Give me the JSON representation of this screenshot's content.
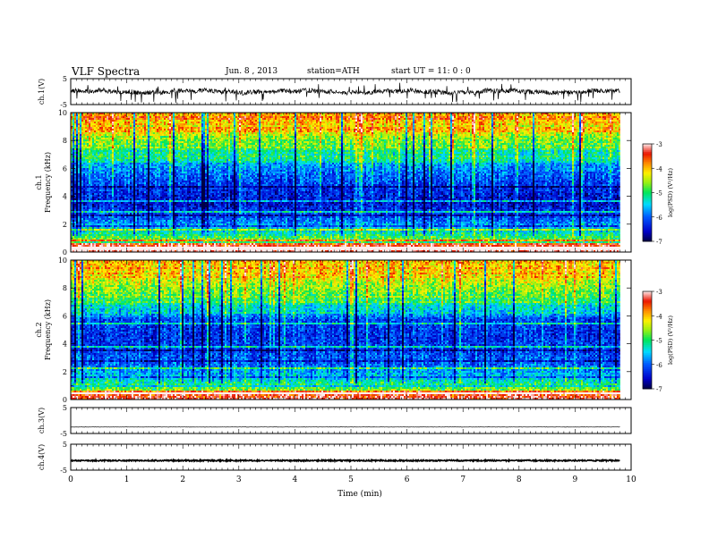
{
  "header": {
    "title": "VLF  Spectra",
    "date": "Jun. 8 , 2013",
    "station": "station=ATH",
    "start": "start  UT  =   11: 0  : 0"
  },
  "chart_data": {
    "type": "composite",
    "xlabel": "Time  (min)",
    "xlim": [
      0,
      10
    ],
    "xticks": [
      "0",
      "1",
      "2",
      "3",
      "4",
      "5",
      "6",
      "7",
      "8",
      "9",
      "10"
    ],
    "data_end_min": 9.8,
    "panels": [
      {
        "id": "ch1_wave",
        "type": "line",
        "ylabel": "ch.1(V)",
        "ylim": [
          -5,
          5
        ],
        "yticks": [
          "5",
          "-5"
        ],
        "baseline": 0,
        "noise_amplitude": 0.9,
        "line_color": "#000000"
      },
      {
        "id": "ch1_spectrogram",
        "type": "heatmap",
        "ylabel_channel": "ch.1",
        "ylabel": "Frequency  (kHz)",
        "ylim": [
          0,
          10
        ],
        "yticks": [
          "0",
          "2",
          "4",
          "6",
          "8",
          "10"
        ],
        "colorbar": {
          "label": "log(PSD) (V²/Hz)",
          "range": [
            -7,
            -3
          ],
          "ticks": [
            "-3",
            "-4",
            "-5",
            "-6",
            "-7"
          ]
        },
        "profile_kHz": [
          [
            0,
            -4.0
          ],
          [
            0.8,
            -4.6
          ],
          [
            1.5,
            -5.4
          ],
          [
            2.5,
            -6.1
          ],
          [
            3.5,
            -6.5
          ],
          [
            4.5,
            -6.3
          ],
          [
            5.5,
            -6.0
          ],
          [
            6.3,
            -5.7
          ],
          [
            7.0,
            -5.2
          ],
          [
            8.0,
            -4.6
          ],
          [
            9.0,
            -4.1
          ],
          [
            10,
            -3.9
          ]
        ]
      },
      {
        "id": "ch2_spectrogram",
        "type": "heatmap",
        "ylabel_channel": "ch.2",
        "ylabel": "Frequency  (kHz)",
        "ylim": [
          0,
          10
        ],
        "yticks": [
          "0",
          "2",
          "4",
          "6",
          "8",
          "10"
        ],
        "colorbar": {
          "label": "log(PSD) (V²/Hz)",
          "range": [
            -7,
            -3
          ],
          "ticks": [
            "-3",
            "-4",
            "-5",
            "-6",
            "-7"
          ]
        },
        "profile_kHz": [
          [
            0,
            -4.2
          ],
          [
            0.8,
            -4.8
          ],
          [
            1.5,
            -5.5
          ],
          [
            2.5,
            -6.0
          ],
          [
            3.5,
            -6.2
          ],
          [
            4.5,
            -6.3
          ],
          [
            5.5,
            -6.2
          ],
          [
            6.3,
            -5.6
          ],
          [
            7.0,
            -5.1
          ],
          [
            8.0,
            -4.6
          ],
          [
            9.0,
            -4.2
          ],
          [
            10,
            -4.0
          ]
        ]
      },
      {
        "id": "ch3_wave",
        "type": "line",
        "ylabel": "ch.3(V)",
        "ylim": [
          -5,
          5
        ],
        "yticks": [
          "5",
          "-5"
        ],
        "baseline": -2.5,
        "noise_amplitude": 0.05,
        "line_color": "#000000"
      },
      {
        "id": "ch4_wave",
        "type": "line",
        "ylabel": "ch.4(V)",
        "ylim": [
          -5,
          5
        ],
        "yticks": [
          "5",
          "-5"
        ],
        "baseline": -1.3,
        "noise_amplitude": 0.25,
        "line_color": "#000000"
      }
    ]
  }
}
